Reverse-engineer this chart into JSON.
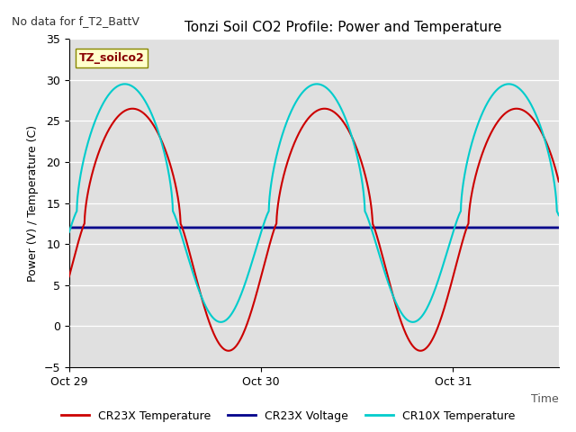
{
  "title": "Tonzi Soil CO2 Profile: Power and Temperature",
  "no_data_text": "No data for f_T2_BattV",
  "ylabel": "Power (V) / Temperature (C)",
  "xlabel": "Time",
  "ylim": [
    -5,
    35
  ],
  "yticks": [
    -5,
    0,
    5,
    10,
    15,
    20,
    25,
    30,
    35
  ],
  "xtick_labels": [
    "Oct 29",
    "Oct 30",
    "Oct 31"
  ],
  "xtick_positions": [
    0.0,
    1.0,
    2.0
  ],
  "legend_box_text": "TZ_soilco2",
  "bg_color": "#e0e0e0",
  "line_voltage_value": 12.0,
  "lines": {
    "CR23X Temperature": {
      "color": "#cc0000",
      "lw": 1.5
    },
    "CR23X Voltage": {
      "color": "#00008b",
      "lw": 2.0
    },
    "CR10X Temperature": {
      "color": "#00cccc",
      "lw": 1.5
    }
  },
  "t_total": 2.55,
  "legend_labels": [
    "CR23X Temperature",
    "CR23X Voltage",
    "CR10X Temperature"
  ]
}
